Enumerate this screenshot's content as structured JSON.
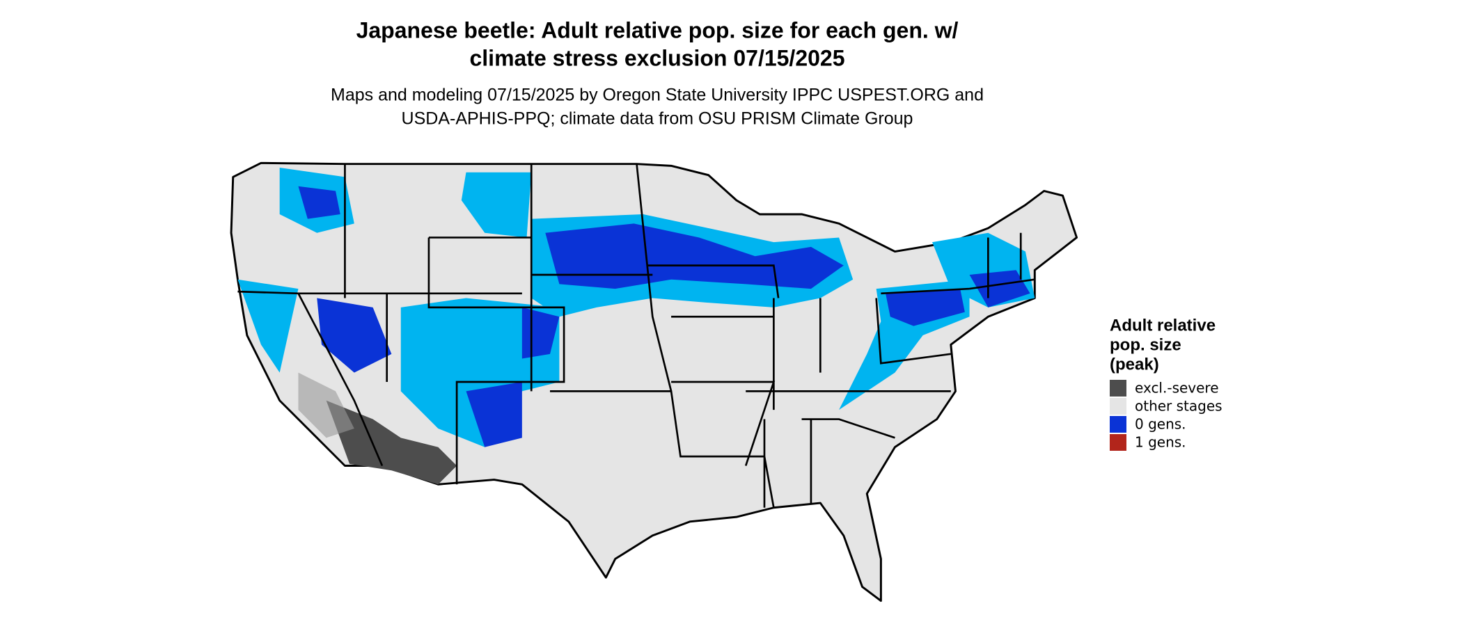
{
  "title": [
    "Japanese beetle: Adult relative pop. size for each gen. w/",
    "climate stress exclusion 07/15/2025"
  ],
  "subtitle": [
    "Maps and modeling 07/15/2025 by Oregon State University IPPC USPEST.ORG and",
    "USDA-APHIS-PPQ; climate data from OSU PRISM Climate Group"
  ],
  "legend": {
    "title": [
      "Adult relative",
      "pop. size",
      "(peak)"
    ],
    "items": [
      {
        "label": "excl.-severe",
        "color": "#4d4d4d"
      },
      {
        "label": "other stages",
        "color": "#e5e5e5"
      },
      {
        "label": "0 gens.",
        "color": "#0a33d6"
      },
      {
        "label": "1 gens.",
        "color": "#b2251b"
      }
    ]
  }
}
